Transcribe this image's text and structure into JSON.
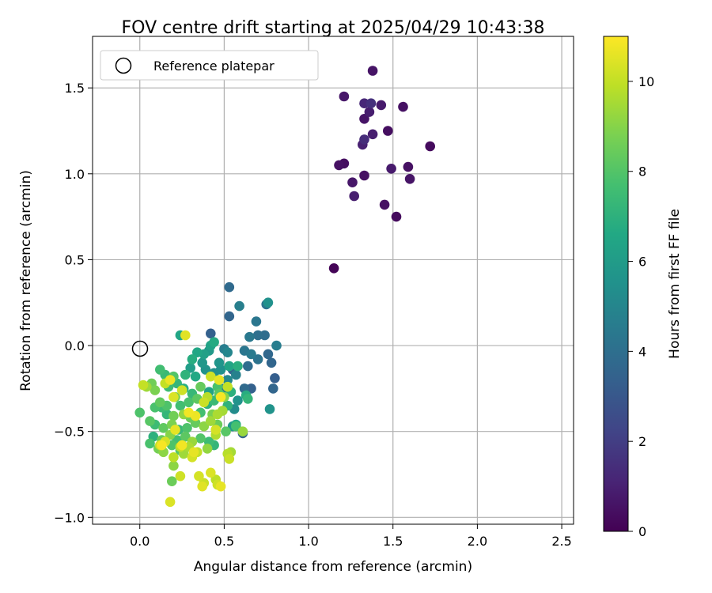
{
  "chart_data": {
    "type": "scatter",
    "title": "FOV centre drift starting at 2025/04/29 10:43:38",
    "xlabel": "Angular distance from reference (arcmin)",
    "ylabel": "Rotation from reference (arcmin)",
    "xlim": [
      -0.28,
      2.57
    ],
    "ylim": [
      -1.04,
      1.8
    ],
    "xticks": [
      0.0,
      0.5,
      1.0,
      1.5,
      2.0,
      2.5
    ],
    "xtick_labels": [
      "0.0",
      "0.5",
      "1.0",
      "1.5",
      "2.0",
      "2.5"
    ],
    "yticks": [
      -1.0,
      -0.5,
      0.0,
      0.5,
      1.0,
      1.5
    ],
    "ytick_labels": [
      "−1.0",
      "−0.5",
      "0.0",
      "0.5",
      "1.0",
      "1.5"
    ],
    "grid": true,
    "legend": {
      "position": "top-left",
      "label": "Reference platepar"
    },
    "reference_point": {
      "x": 0.0,
      "y": 0.0
    },
    "colorbar": {
      "label": "Hours from first FF file",
      "colormap": "viridis",
      "range": [
        0,
        11
      ],
      "ticks": [
        0,
        2,
        4,
        6,
        8,
        10
      ],
      "tick_labels": [
        "0",
        "2",
        "4",
        "6",
        "8",
        "10"
      ]
    },
    "points": [
      [
        1.38,
        1.6,
        0.6
      ],
      [
        1.21,
        1.45,
        0.7
      ],
      [
        1.33,
        1.41,
        1.2
      ],
      [
        1.37,
        1.41,
        1.5
      ],
      [
        1.43,
        1.4,
        0.8
      ],
      [
        1.56,
        1.39,
        0.5
      ],
      [
        1.36,
        1.36,
        0.9
      ],
      [
        1.33,
        1.32,
        0.6
      ],
      [
        1.47,
        1.25,
        0.4
      ],
      [
        1.38,
        1.23,
        0.9
      ],
      [
        1.33,
        1.2,
        1.4
      ],
      [
        1.72,
        1.16,
        0.3
      ],
      [
        1.32,
        1.17,
        1.0
      ],
      [
        1.18,
        1.05,
        0.5
      ],
      [
        1.21,
        1.06,
        0.4
      ],
      [
        1.49,
        1.03,
        0.8
      ],
      [
        1.59,
        1.04,
        0.5
      ],
      [
        1.33,
        0.99,
        0.5
      ],
      [
        1.26,
        0.95,
        0.7
      ],
      [
        1.6,
        0.97,
        0.6
      ],
      [
        1.27,
        0.87,
        0.9
      ],
      [
        1.45,
        0.82,
        0.5
      ],
      [
        1.52,
        0.75,
        0.3
      ],
      [
        1.15,
        0.45,
        0.1
      ],
      [
        0.53,
        0.34,
        3.8
      ],
      [
        0.53,
        0.17,
        3.6
      ],
      [
        0.59,
        0.23,
        4.7
      ],
      [
        0.76,
        0.25,
        5.5
      ],
      [
        0.75,
        0.24,
        4.2
      ],
      [
        0.69,
        0.14,
        4.3
      ],
      [
        0.42,
        0.07,
        3.4
      ],
      [
        0.7,
        0.06,
        4.0
      ],
      [
        0.74,
        0.06,
        3.9
      ],
      [
        0.65,
        0.05,
        4.4
      ],
      [
        0.81,
        0.0,
        4.6
      ],
      [
        0.62,
        -0.03,
        4.3
      ],
      [
        0.66,
        -0.05,
        4.5
      ],
      [
        0.76,
        -0.05,
        3.7
      ],
      [
        0.7,
        -0.08,
        4.2
      ],
      [
        0.78,
        -0.1,
        3.6
      ],
      [
        0.64,
        -0.12,
        3.9
      ],
      [
        0.55,
        -0.14,
        3.5
      ],
      [
        0.57,
        -0.17,
        4.8
      ],
      [
        0.52,
        -0.2,
        5.1
      ],
      [
        0.8,
        -0.19,
        3.3
      ],
      [
        0.66,
        -0.25,
        3.4
      ],
      [
        0.62,
        -0.25,
        3.8
      ],
      [
        0.79,
        -0.25,
        3.6
      ],
      [
        0.5,
        -0.25,
        4.6
      ],
      [
        0.58,
        -0.32,
        5.6
      ],
      [
        0.56,
        -0.37,
        5.3
      ],
      [
        0.77,
        -0.37,
        5.6
      ],
      [
        0.61,
        -0.51,
        3.5
      ],
      [
        0.55,
        -0.47,
        5.8
      ],
      [
        0.57,
        -0.46,
        6.6
      ],
      [
        0.42,
        0.0,
        6.3
      ],
      [
        0.44,
        0.02,
        6.7
      ],
      [
        0.41,
        -0.03,
        5.9
      ],
      [
        0.38,
        -0.05,
        6.2
      ],
      [
        0.5,
        -0.02,
        4.6
      ],
      [
        0.52,
        -0.04,
        5.0
      ],
      [
        0.34,
        -0.04,
        6.5
      ],
      [
        0.31,
        -0.08,
        6.8
      ],
      [
        0.37,
        -0.1,
        5.8
      ],
      [
        0.47,
        -0.1,
        5.7
      ],
      [
        0.3,
        -0.13,
        6.1
      ],
      [
        0.27,
        -0.17,
        7.1
      ],
      [
        0.33,
        -0.18,
        6.6
      ],
      [
        0.39,
        -0.14,
        5.6
      ],
      [
        0.44,
        -0.16,
        5.4
      ],
      [
        0.48,
        -0.14,
        5.5
      ],
      [
        0.53,
        -0.12,
        6.4
      ],
      [
        0.58,
        -0.12,
        6.9
      ],
      [
        0.12,
        -0.14,
        7.6
      ],
      [
        0.15,
        -0.17,
        7.4
      ],
      [
        0.2,
        -0.18,
        8.0
      ],
      [
        0.22,
        -0.22,
        7.2
      ],
      [
        0.17,
        -0.24,
        7.5
      ],
      [
        0.07,
        -0.22,
        8.6
      ],
      [
        0.09,
        -0.26,
        8.8
      ],
      [
        0.04,
        -0.24,
        9.4
      ],
      [
        0.26,
        -0.25,
        6.9
      ],
      [
        0.31,
        -0.28,
        7.3
      ],
      [
        0.36,
        -0.24,
        8.4
      ],
      [
        0.41,
        -0.27,
        6.3
      ],
      [
        0.46,
        -0.24,
        7.8
      ],
      [
        0.47,
        -0.28,
        8.1
      ],
      [
        0.54,
        -0.27,
        7.0
      ],
      [
        0.5,
        -0.3,
        9.0
      ],
      [
        0.12,
        -0.33,
        8.3
      ],
      [
        0.16,
        -0.35,
        7.9
      ],
      [
        0.21,
        -0.3,
        8.7
      ],
      [
        0.24,
        -0.35,
        7.6
      ],
      [
        0.29,
        -0.33,
        7.8
      ],
      [
        0.34,
        -0.31,
        8.2
      ],
      [
        0.4,
        -0.34,
        7.0
      ],
      [
        0.44,
        -0.32,
        7.4
      ],
      [
        0.64,
        -0.31,
        7.2
      ],
      [
        0.63,
        -0.29,
        6.8
      ],
      [
        0.09,
        -0.36,
        7.8
      ],
      [
        0.13,
        -0.36,
        7.5
      ],
      [
        0.0,
        -0.39,
        7.9
      ],
      [
        0.16,
        -0.4,
        7.2
      ],
      [
        0.2,
        -0.41,
        8.6
      ],
      [
        0.26,
        -0.4,
        9.2
      ],
      [
        0.3,
        -0.42,
        8.5
      ],
      [
        0.36,
        -0.39,
        7.7
      ],
      [
        0.43,
        -0.4,
        8.8
      ],
      [
        0.49,
        -0.38,
        9.5
      ],
      [
        0.52,
        -0.35,
        7.1
      ],
      [
        0.06,
        -0.44,
        8.1
      ],
      [
        0.09,
        -0.46,
        7.5
      ],
      [
        0.14,
        -0.48,
        8.3
      ],
      [
        0.19,
        -0.46,
        8.8
      ],
      [
        0.23,
        -0.49,
        7.3
      ],
      [
        0.28,
        -0.48,
        7.9
      ],
      [
        0.33,
        -0.45,
        8.4
      ],
      [
        0.38,
        -0.47,
        9.1
      ],
      [
        0.42,
        -0.44,
        9.4
      ],
      [
        0.46,
        -0.46,
        8.5
      ],
      [
        0.51,
        -0.5,
        8.1
      ],
      [
        0.57,
        -0.47,
        7.7
      ],
      [
        0.61,
        -0.5,
        9.3
      ],
      [
        0.08,
        -0.53,
        7.0
      ],
      [
        0.13,
        -0.55,
        8.4
      ],
      [
        0.18,
        -0.52,
        9.0
      ],
      [
        0.22,
        -0.55,
        7.6
      ],
      [
        0.27,
        -0.53,
        8.2
      ],
      [
        0.31,
        -0.56,
        9.3
      ],
      [
        0.36,
        -0.54,
        8.0
      ],
      [
        0.41,
        -0.56,
        7.5
      ],
      [
        0.45,
        -0.52,
        9.7
      ],
      [
        0.06,
        -0.57,
        7.8
      ],
      [
        0.11,
        -0.6,
        8.7
      ],
      [
        0.14,
        -0.62,
        9.1
      ],
      [
        0.19,
        -0.58,
        7.9
      ],
      [
        0.24,
        -0.61,
        8.1
      ],
      [
        0.29,
        -0.59,
        9.6
      ],
      [
        0.34,
        -0.62,
        10.0
      ],
      [
        0.4,
        -0.6,
        9.2
      ],
      [
        0.44,
        -0.58,
        7.2
      ],
      [
        0.52,
        -0.63,
        9.8
      ],
      [
        0.53,
        -0.66,
        10.1
      ],
      [
        0.54,
        -0.62,
        9.5
      ],
      [
        0.2,
        -0.65,
        9.9
      ],
      [
        0.26,
        -0.63,
        9.4
      ],
      [
        0.31,
        -0.65,
        10.3
      ],
      [
        0.2,
        -0.7,
        9.1
      ],
      [
        0.24,
        -0.76,
        10.2
      ],
      [
        0.19,
        -0.79,
        8.5
      ],
      [
        0.35,
        -0.76,
        10.3
      ],
      [
        0.38,
        -0.8,
        10.1
      ],
      [
        0.42,
        -0.74,
        10.4
      ],
      [
        0.45,
        -0.78,
        9.9
      ],
      [
        0.37,
        -0.82,
        10.5
      ],
      [
        0.46,
        -0.81,
        10.2
      ],
      [
        0.48,
        -0.82,
        10.6
      ],
      [
        0.18,
        -0.91,
        10.4
      ],
      [
        0.12,
        -0.58,
        10.1
      ],
      [
        0.15,
        -0.56,
        10.3
      ],
      [
        0.32,
        -0.62,
        10.6
      ],
      [
        0.25,
        -0.58,
        10.8
      ],
      [
        0.27,
        0.06,
        10.5
      ],
      [
        0.24,
        0.06,
        6.5
      ],
      [
        0.47,
        -0.2,
        10.6
      ],
      [
        0.42,
        -0.18,
        10.2
      ],
      [
        0.15,
        -0.22,
        10.0
      ],
      [
        0.18,
        -0.2,
        10.7
      ],
      [
        0.2,
        -0.3,
        10.4
      ],
      [
        0.25,
        -0.26,
        10.2
      ],
      [
        0.29,
        -0.39,
        10.8
      ],
      [
        0.21,
        -0.49,
        10.6
      ],
      [
        0.48,
        -0.3,
        10.9
      ],
      [
        0.45,
        -0.49,
        10.3
      ],
      [
        0.24,
        -0.59,
        10.0
      ],
      [
        0.13,
        -0.58,
        10.9
      ],
      [
        0.33,
        -0.41,
        10.7
      ],
      [
        0.38,
        -0.33,
        10.1
      ],
      [
        0.02,
        -0.23,
        10.0
      ],
      [
        0.4,
        -0.3,
        9.8
      ],
      [
        0.46,
        -0.4,
        9.6
      ],
      [
        0.52,
        -0.24,
        10.0
      ]
    ]
  }
}
